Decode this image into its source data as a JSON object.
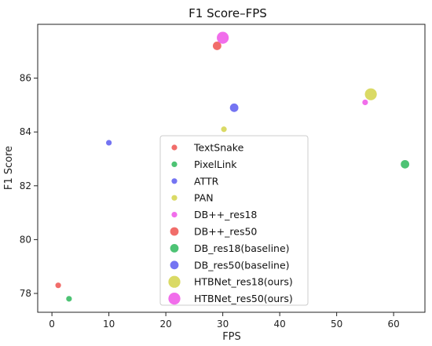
{
  "chart_data": {
    "type": "scatter",
    "title": "F1 Score–FPS",
    "xlabel": "FPS",
    "ylabel": "F1 Score",
    "xlim": [
      -2.5,
      65.5
    ],
    "ylim": [
      77.3,
      88.0
    ],
    "xticks": [
      0,
      10,
      20,
      30,
      40,
      50,
      60
    ],
    "yticks": [
      78,
      80,
      82,
      84,
      86
    ],
    "grid": false,
    "legend_position": "lower-center",
    "series": [
      {
        "name": "TextSnake",
        "color": "#ef5350",
        "size": "small",
        "points": [
          {
            "x": 1.1,
            "y": 78.3
          }
        ]
      },
      {
        "name": "PixelLink",
        "color": "#2eb85c",
        "size": "small",
        "points": [
          {
            "x": 3.0,
            "y": 77.8
          }
        ]
      },
      {
        "name": "ATTR",
        "color": "#5c5cf0",
        "size": "small",
        "points": [
          {
            "x": 10.0,
            "y": 83.6
          }
        ]
      },
      {
        "name": "PAN",
        "color": "#d4d44a",
        "size": "small",
        "points": [
          {
            "x": 30.2,
            "y": 84.1
          }
        ]
      },
      {
        "name": "DB++_res18",
        "color": "#ef55e8",
        "size": "small",
        "points": [
          {
            "x": 55.0,
            "y": 85.1
          }
        ]
      },
      {
        "name": "DB++_res50",
        "color": "#ef5350",
        "size": "medium",
        "points": [
          {
            "x": 29.0,
            "y": 87.2
          }
        ]
      },
      {
        "name": "DB_res18(baseline)",
        "color": "#2eb85c",
        "size": "medium",
        "points": [
          {
            "x": 62.0,
            "y": 82.8
          }
        ]
      },
      {
        "name": "DB_res50(baseline)",
        "color": "#5c5cf0",
        "size": "medium",
        "points": [
          {
            "x": 32.0,
            "y": 84.9
          }
        ]
      },
      {
        "name": "HTBNet_res18(ours)",
        "color": "#d4d44a",
        "size": "large",
        "points": [
          {
            "x": 56.0,
            "y": 85.4
          }
        ]
      },
      {
        "name": "HTBNet_res50(ours)",
        "color": "#ef55e8",
        "size": "large",
        "points": [
          {
            "x": 30.0,
            "y": 87.5
          }
        ]
      }
    ]
  }
}
